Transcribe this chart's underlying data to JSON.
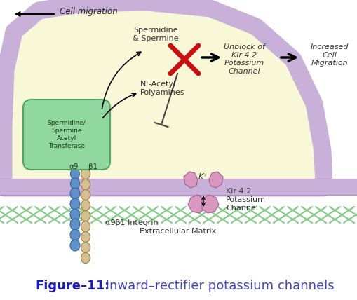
{
  "title_bold": "Figure–11:",
  "title_normal": " Inward–rectifier potassium channels",
  "title_fontsize": 13,
  "bg_color": "#ffffff",
  "cell_bg": "#f8f8d8",
  "membrane_color": "#c8b0d8",
  "ecm_line_color": "#80cc80",
  "integrin_alpha_color": "#6090c8",
  "integrin_alpha_edge": "#3060a0",
  "integrin_beta_color": "#d4c090",
  "integrin_beta_edge": "#a08040",
  "enzyme_fill": "#90d8a0",
  "enzyme_edge": "#50a860",
  "channel_color": "#d898c0",
  "channel_edge": "#a06090",
  "arrow_color": "#111111",
  "red_x_color": "#cc1010",
  "inhibit_line_color": "#444444",
  "label_color": "#333333",
  "cell_migration_text": "Cell migration",
  "spermidine_text": "Spermidine\n& Spermine",
  "nacetyl_text": "N¹-Acetyl\nPolyamines",
  "unblock_text": "Unblock of\nKir 4.2\nPotassium\nChannel",
  "increased_text": "Increased\nCell\nMigration",
  "enzyme_text": "Spermidine/\nSpermine\nAcetyl\nTransferase",
  "alpha9_text": "α9",
  "beta1_text": "β1",
  "integrin_text": "α9β1 Integrin",
  "k_text": "K⁺",
  "kir_text": "Kir 4.2\nPotassium\nChannel",
  "ecm_text": "Extracellular Matrix",
  "figure_bold_color": "#1a1acc",
  "figure_normal_color": "#4444cc"
}
